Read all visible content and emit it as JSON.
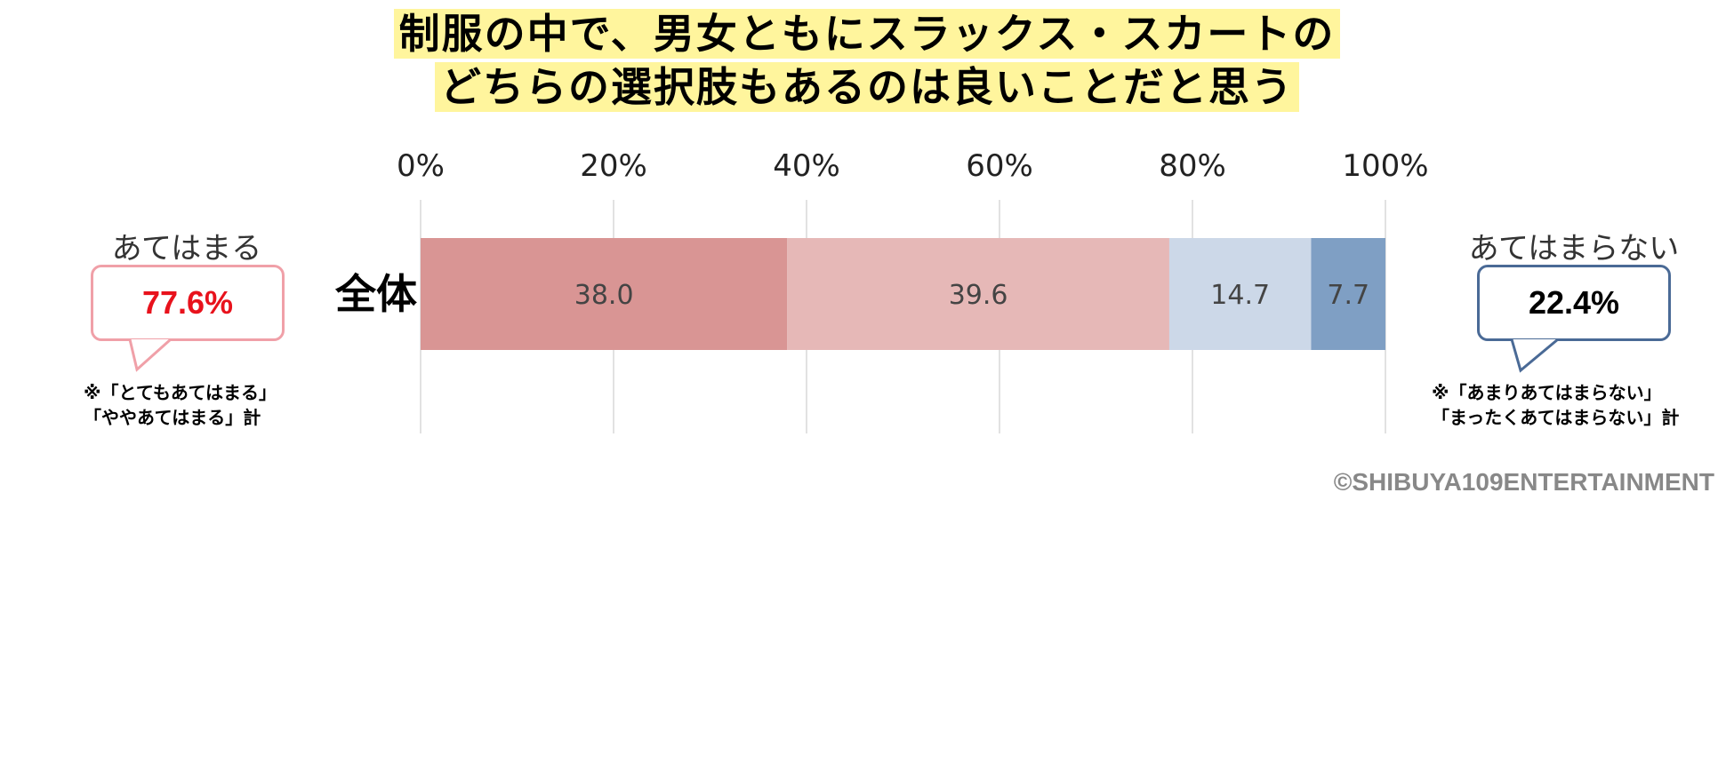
{
  "title_lines": [
    "制服の中で、男女ともにスラックス・スカートの",
    "どちらの選択肢もあるのは良いことだと思う"
  ],
  "left_summary": {
    "label": "あてはまる",
    "value": "77.6%",
    "note": "※「とてもあてはまる」\n「ややあてはまる」計"
  },
  "right_summary": {
    "label": "あてはまらない",
    "value": "22.4%",
    "note": "※「あまりあてはまらない」\n「まったくあてはまらない」計"
  },
  "copyright": "©SHIBUYA109ENTERTAINMENT",
  "chart_data": {
    "type": "bar",
    "orientation": "horizontal-stacked-100",
    "categories": [
      "全体"
    ],
    "xlim": [
      0,
      100
    ],
    "x_ticks": [
      "0%",
      "20%",
      "40%",
      "60%",
      "80%",
      "100%"
    ],
    "grid": true,
    "series": [
      {
        "values": [
          38.0
        ],
        "color": "#d99594"
      },
      {
        "values": [
          39.6
        ],
        "color": "#e6b8b7"
      },
      {
        "values": [
          14.7
        ],
        "color": "#ccd8e8"
      },
      {
        "values": [
          7.7
        ],
        "color": "#7f9fc4"
      }
    ]
  }
}
